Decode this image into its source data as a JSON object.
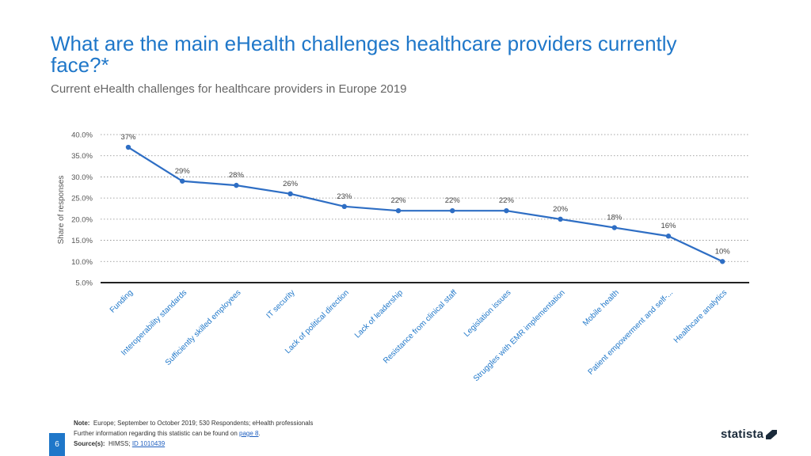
{
  "header": {
    "title": "What are the main eHealth challenges healthcare providers currently face?*",
    "subtitle": "Current eHealth challenges for healthcare providers in Europe 2019"
  },
  "chart_data": {
    "type": "line",
    "title": "What are the main eHealth challenges healthcare providers currently face?*",
    "subtitle": "Current eHealth challenges for healthcare providers in Europe 2019",
    "xlabel": "",
    "ylabel": "Share of responses",
    "ylim": [
      5,
      40
    ],
    "yticks": [
      5,
      10,
      15,
      20,
      25,
      30,
      35,
      40
    ],
    "ytick_labels": [
      "5.0%",
      "10.0%",
      "15.0%",
      "20.0%",
      "25.0%",
      "30.0%",
      "35.0%",
      "40.0%"
    ],
    "grid": true,
    "series_color": "#2e6ec4",
    "categories": [
      "Funding",
      "Interoperability standards",
      "Sufficiently skilled employees",
      "IT security",
      "Lack of political direction",
      "Lack of leadership",
      "Resistance from clinical staff",
      "Legislation issues",
      "Struggles with EMR implementation",
      "Mobile health",
      "Patient empowerment and self-...",
      "Healthcare analytics"
    ],
    "values": [
      37,
      29,
      28,
      26,
      23,
      22,
      22,
      22,
      20,
      18,
      16,
      10
    ],
    "data_labels": [
      "37%",
      "29%",
      "28%",
      "26%",
      "23%",
      "22%",
      "22%",
      "22%",
      "20%",
      "18%",
      "16%",
      "10%"
    ]
  },
  "footer": {
    "note_label": "Note:",
    "note_text": "Europe; September to October 2019; 530 Respondents; eHealth professionals",
    "info_text": "Further information regarding this statistic can be found on",
    "info_link": "page 8",
    "info_end": ".",
    "source_label": "Source(s):",
    "source_text": "HIMSS;",
    "source_link": "ID 1010439",
    "page_number": "6",
    "logo_text": "statista"
  }
}
